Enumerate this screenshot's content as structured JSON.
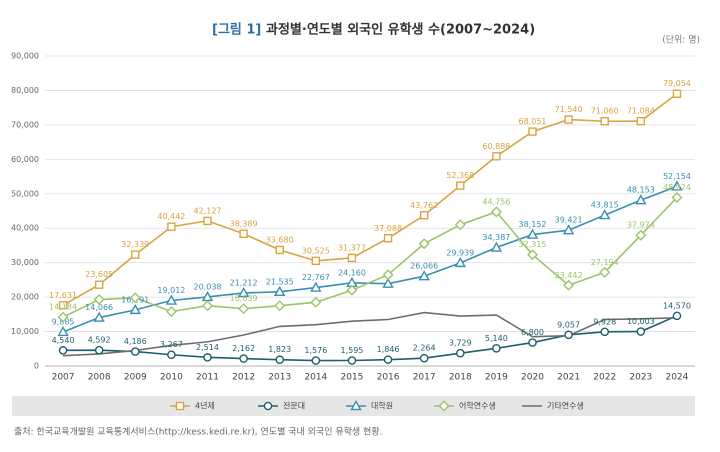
{
  "chart_data": {
    "type": "line",
    "figure_label": "[그림 1]",
    "title": "과정별·연도별 외국인 유학생 수(2007~2024)",
    "unit": "(단위: 명)",
    "source": "출처: 한국교육개발원 교육통계서비스(http://kess.kedi.re.kr), 연도별 국내 외국인 유학생 현황.",
    "categories": [
      "2007",
      "2008",
      "2009",
      "2010",
      "2011",
      "2012",
      "2013",
      "2014",
      "2015",
      "2016",
      "2017",
      "2018",
      "2019",
      "2020",
      "2021",
      "2022",
      "2023",
      "2024"
    ],
    "ylim": [
      0,
      90000
    ],
    "yticks": [
      0,
      {
        "value": 10000,
        "label": "10,000"
      },
      {
        "value": 20000,
        "label": "20,000"
      },
      {
        "value": 30000,
        "label": "30,000"
      },
      {
        "value": 40000,
        "label": "40,000"
      },
      {
        "value": 50000,
        "label": "50,000"
      },
      {
        "value": 60000,
        "label": "60,000"
      },
      {
        "value": 70000,
        "label": "70,000"
      },
      {
        "value": 80000,
        "label": "80,000"
      },
      {
        "value": 90000,
        "label": "90,000"
      }
    ],
    "grid": true,
    "legend": "bottom",
    "series": [
      {
        "name": "4년제",
        "color": "#d9a441",
        "marker": "square",
        "values": [
          17631,
          23605,
          32339,
          40442,
          42127,
          38389,
          33680,
          30525,
          31377,
          37088,
          43762,
          52368,
          60888,
          68051,
          71540,
          71060,
          71084,
          79054
        ],
        "value_labels": [
          "17,631",
          "23,605",
          "32,339",
          "40,442",
          "42,127",
          "38,389",
          "33,680",
          "30,525",
          "31,377",
          "37,088",
          "43,762",
          "52,368",
          "60,888",
          "68,051",
          "71,540",
          "71,060",
          "71,084",
          "79,054"
        ]
      },
      {
        "name": "전문대",
        "color": "#1f5f6b",
        "marker": "circle",
        "values": [
          4540,
          4592,
          4186,
          3267,
          2514,
          2162,
          1823,
          1576,
          1595,
          1846,
          2264,
          3729,
          5140,
          6800,
          9057,
          9928,
          10003,
          14570
        ],
        "value_labels": [
          "4,540",
          "4,592",
          "4,186",
          "3,267",
          "2,514",
          "2,162",
          "1,823",
          "1,576",
          "1,595",
          "1,846",
          "2,264",
          "3,729",
          "5,140",
          "6,800",
          "9,057",
          "9,928",
          "10,003",
          "14,570"
        ]
      },
      {
        "name": "대학원",
        "color": "#3a8fb0",
        "marker": "triangle",
        "values": [
          9885,
          14066,
          16291,
          19012,
          20038,
          21212,
          21535,
          22767,
          24160,
          23900,
          26066,
          29939,
          34387,
          38152,
          39421,
          43815,
          48153,
          52154
        ],
        "value_labels": [
          "9,885",
          "14,066",
          "16,291",
          "19,012",
          "20,038",
          "21,212",
          "21,535",
          "22,767",
          "24,160",
          null,
          "26,066",
          "29,939",
          "34,387",
          "38,152",
          "39,421",
          "43,815",
          "48,153",
          "52,154"
        ]
      },
      {
        "name": "어학연수생",
        "color": "#9cc46a",
        "marker": "diamond",
        "values": [
          14184,
          19300,
          19800,
          15800,
          17500,
          16639,
          17500,
          18500,
          22000,
          26500,
          35500,
          41000,
          44756,
          32315,
          23442,
          27194,
          37974,
          48924
        ],
        "value_labels": [
          "14,184",
          null,
          null,
          null,
          null,
          "16,639",
          null,
          null,
          null,
          null,
          null,
          null,
          "44,756",
          "32,315",
          "23,442",
          "27,194",
          "37,974",
          "48,924"
        ]
      },
      {
        "name": "기타연수생",
        "color": "#6d6d6d",
        "marker": null,
        "values": [
          3000,
          3500,
          4500,
          6000,
          7000,
          9000,
          11500,
          12000,
          13000,
          13500,
          15500,
          14500,
          14800,
          8500,
          8800,
          13500,
          13700,
          14000
        ]
      }
    ]
  }
}
